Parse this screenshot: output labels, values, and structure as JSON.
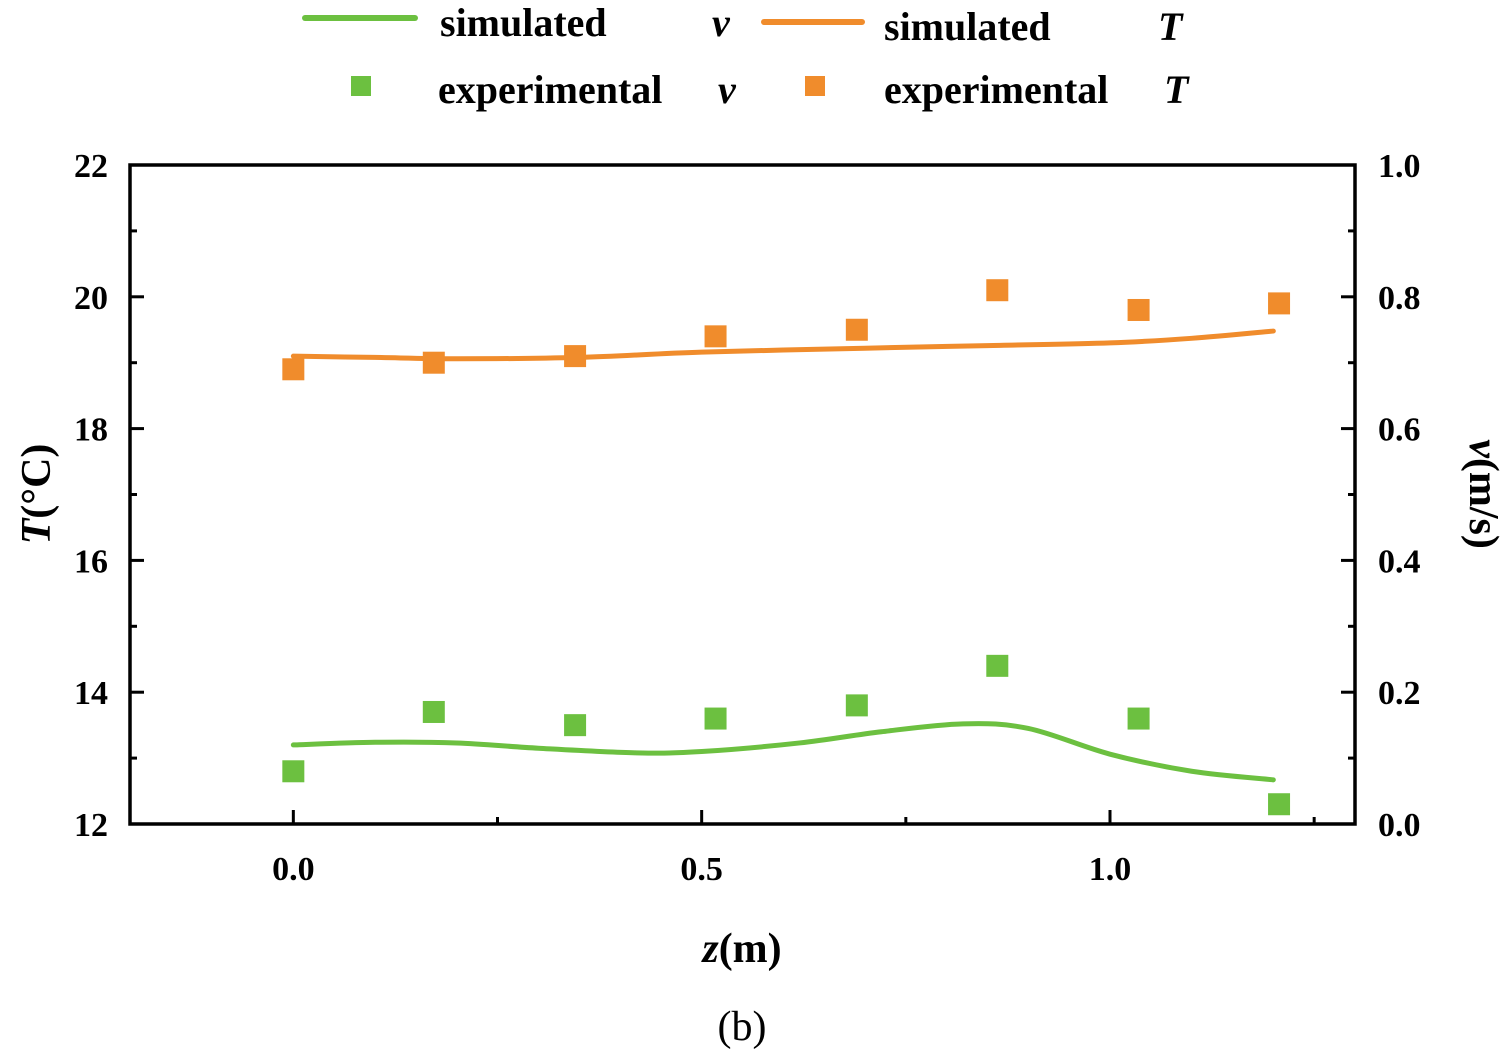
{
  "chart_data": {
    "type": "line",
    "title": "",
    "caption": "(b)",
    "xlabel": {
      "var": "z",
      "unit": "(m)"
    },
    "ylabel_left": {
      "var": "T",
      "unit": "(°C)"
    },
    "ylabel_right": {
      "var": "v",
      "unit": "(m/s)"
    },
    "xlim": [
      -0.2,
      1.3
    ],
    "ylim_left": [
      12,
      22
    ],
    "ylim_right": [
      0.0,
      1.0
    ],
    "xticks": [
      "0.0",
      "0.5",
      "1.0"
    ],
    "yticks_left": [
      "12",
      "14",
      "16",
      "18",
      "20",
      "22"
    ],
    "yticks_right": [
      "0.0",
      "0.2",
      "0.4",
      "0.6",
      "0.8",
      "1.0"
    ],
    "legend_position": "top",
    "legend": [
      {
        "key": "sim_v",
        "text": "simulated",
        "var": "v"
      },
      {
        "key": "sim_T",
        "text": "simulated",
        "var": "T"
      },
      {
        "key": "exp_v",
        "text": "experimental",
        "var": "v"
      },
      {
        "key": "exp_T",
        "text": "experimental",
        "var": "T"
      }
    ],
    "colors": {
      "green": "#6cc040",
      "orange": "#f08c2c",
      "axis": "#000000"
    },
    "series": [
      {
        "name": "simulated T",
        "style": "line",
        "axis": "left",
        "color": "#f08c2c",
        "x": [
          0.0,
          0.1,
          0.2,
          0.35,
          0.5,
          0.7,
          0.85,
          1.0,
          1.1,
          1.2
        ],
        "values": [
          19.1,
          19.08,
          19.06,
          19.08,
          19.16,
          19.22,
          19.26,
          19.3,
          19.37,
          19.48
        ]
      },
      {
        "name": "experimental T",
        "style": "marker",
        "axis": "left",
        "color": "#f08c2c",
        "x": [
          0.0,
          0.172,
          0.345,
          0.517,
          0.69,
          0.862,
          1.035,
          1.207
        ],
        "values": [
          18.9,
          19.0,
          19.1,
          19.4,
          19.5,
          20.1,
          19.8,
          19.9
        ]
      },
      {
        "name": "simulated v",
        "style": "line",
        "axis": "right",
        "color": "#6cc040",
        "x": [
          0.0,
          0.1,
          0.2,
          0.3,
          0.42,
          0.5,
          0.62,
          0.72,
          0.82,
          0.9,
          1.0,
          1.1,
          1.2
        ],
        "values": [
          0.12,
          0.124,
          0.123,
          0.115,
          0.108,
          0.11,
          0.123,
          0.14,
          0.152,
          0.145,
          0.106,
          0.08,
          0.067
        ]
      },
      {
        "name": "experimental v",
        "style": "marker",
        "axis": "right",
        "color": "#6cc040",
        "x": [
          0.0,
          0.172,
          0.345,
          0.517,
          0.69,
          0.862,
          1.035,
          1.207
        ],
        "values": [
          0.08,
          0.17,
          0.15,
          0.16,
          0.18,
          0.24,
          0.16,
          0.03
        ]
      }
    ]
  }
}
